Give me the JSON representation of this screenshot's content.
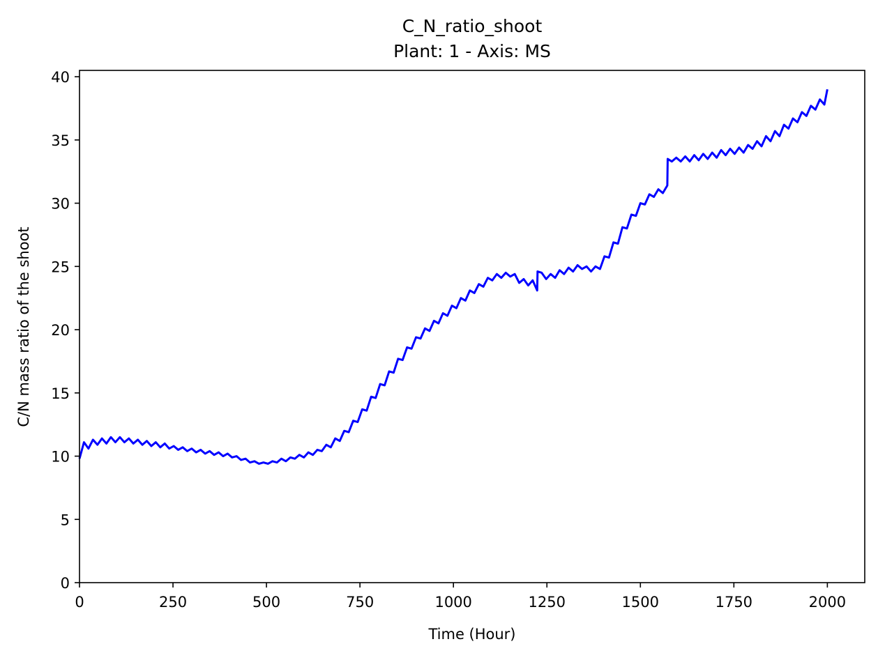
{
  "chart_data": {
    "type": "line",
    "title": "C_N_ratio_shoot",
    "subtitle": "Plant: 1 - Axis: MS",
    "xlabel": "Time (Hour)",
    "ylabel": "C/N mass ratio of the shoot",
    "xlim": [
      0,
      2100
    ],
    "ylim": [
      0,
      40.5
    ],
    "xticks": [
      0,
      250,
      500,
      750,
      1000,
      1250,
      1500,
      1750,
      2000
    ],
    "xtick_labels": [
      "0",
      "250",
      "500",
      "750",
      "1000",
      "1250",
      "1500",
      "1750",
      "2000"
    ],
    "yticks": [
      0,
      5,
      10,
      15,
      20,
      25,
      30,
      35,
      40
    ],
    "ytick_labels": [
      "0",
      "5",
      "10",
      "15",
      "20",
      "25",
      "30",
      "35",
      "40"
    ],
    "grid": false,
    "legend": "none",
    "series": [
      {
        "color": "#0000ff",
        "x": [
          0,
          12,
          24,
          36,
          48,
          60,
          72,
          84,
          96,
          108,
          120,
          132,
          144,
          156,
          168,
          180,
          192,
          204,
          216,
          228,
          240,
          252,
          264,
          276,
          288,
          300,
          312,
          324,
          336,
          348,
          360,
          372,
          384,
          396,
          408,
          420,
          432,
          444,
          456,
          468,
          480,
          492,
          504,
          516,
          528,
          540,
          552,
          564,
          576,
          588,
          600,
          612,
          624,
          636,
          648,
          660,
          672,
          684,
          696,
          708,
          720,
          732,
          744,
          756,
          768,
          780,
          792,
          804,
          816,
          828,
          840,
          852,
          864,
          876,
          888,
          900,
          912,
          924,
          936,
          948,
          960,
          972,
          984,
          996,
          1008,
          1020,
          1032,
          1044,
          1056,
          1068,
          1080,
          1092,
          1104,
          1116,
          1128,
          1140,
          1152,
          1164,
          1176,
          1188,
          1200,
          1212,
          1224,
          1225,
          1236,
          1248,
          1260,
          1272,
          1284,
          1296,
          1308,
          1320,
          1332,
          1344,
          1356,
          1368,
          1380,
          1392,
          1404,
          1416,
          1428,
          1440,
          1452,
          1464,
          1476,
          1488,
          1500,
          1512,
          1524,
          1536,
          1548,
          1560,
          1572,
          1573,
          1584,
          1596,
          1608,
          1620,
          1632,
          1644,
          1656,
          1668,
          1680,
          1692,
          1704,
          1716,
          1728,
          1740,
          1752,
          1764,
          1776,
          1788,
          1800,
          1812,
          1824,
          1836,
          1848,
          1860,
          1872,
          1884,
          1896,
          1908,
          1920,
          1932,
          1944,
          1956,
          1968,
          1980,
          1992,
          2000
        ],
        "y": [
          9.8,
          11.1,
          10.6,
          11.3,
          10.9,
          11.4,
          11.0,
          11.5,
          11.1,
          11.5,
          11.1,
          11.4,
          11.0,
          11.3,
          10.9,
          11.2,
          10.8,
          11.1,
          10.7,
          11.0,
          10.6,
          10.8,
          10.5,
          10.7,
          10.4,
          10.6,
          10.3,
          10.5,
          10.2,
          10.4,
          10.1,
          10.3,
          10.0,
          10.2,
          9.9,
          10.0,
          9.7,
          9.8,
          9.5,
          9.6,
          9.4,
          9.5,
          9.4,
          9.6,
          9.5,
          9.8,
          9.6,
          9.9,
          9.8,
          10.1,
          9.9,
          10.3,
          10.1,
          10.5,
          10.4,
          10.9,
          10.7,
          11.4,
          11.2,
          12.0,
          11.9,
          12.8,
          12.7,
          13.7,
          13.6,
          14.7,
          14.6,
          15.7,
          15.6,
          16.7,
          16.6,
          17.7,
          17.6,
          18.6,
          18.5,
          19.4,
          19.3,
          20.1,
          19.9,
          20.7,
          20.5,
          21.3,
          21.1,
          21.9,
          21.7,
          22.5,
          22.3,
          23.1,
          22.9,
          23.6,
          23.4,
          24.1,
          23.9,
          24.4,
          24.1,
          24.5,
          24.2,
          24.4,
          23.7,
          24.0,
          23.5,
          23.9,
          23.1,
          24.6,
          24.5,
          24.0,
          24.4,
          24.1,
          24.7,
          24.4,
          24.9,
          24.6,
          25.1,
          24.8,
          25.0,
          24.6,
          25.0,
          24.8,
          25.8,
          25.7,
          26.9,
          26.8,
          28.1,
          28.0,
          29.1,
          29.0,
          30.0,
          29.9,
          30.7,
          30.5,
          31.1,
          30.8,
          31.4,
          33.5,
          33.3,
          33.6,
          33.3,
          33.7,
          33.3,
          33.8,
          33.4,
          33.9,
          33.5,
          34.0,
          33.6,
          34.2,
          33.8,
          34.3,
          33.9,
          34.4,
          34.0,
          34.6,
          34.3,
          34.9,
          34.5,
          35.3,
          34.9,
          35.7,
          35.3,
          36.2,
          35.9,
          36.7,
          36.4,
          37.2,
          36.9,
          37.7,
          37.4,
          38.2,
          37.8,
          39.0
        ]
      }
    ]
  }
}
